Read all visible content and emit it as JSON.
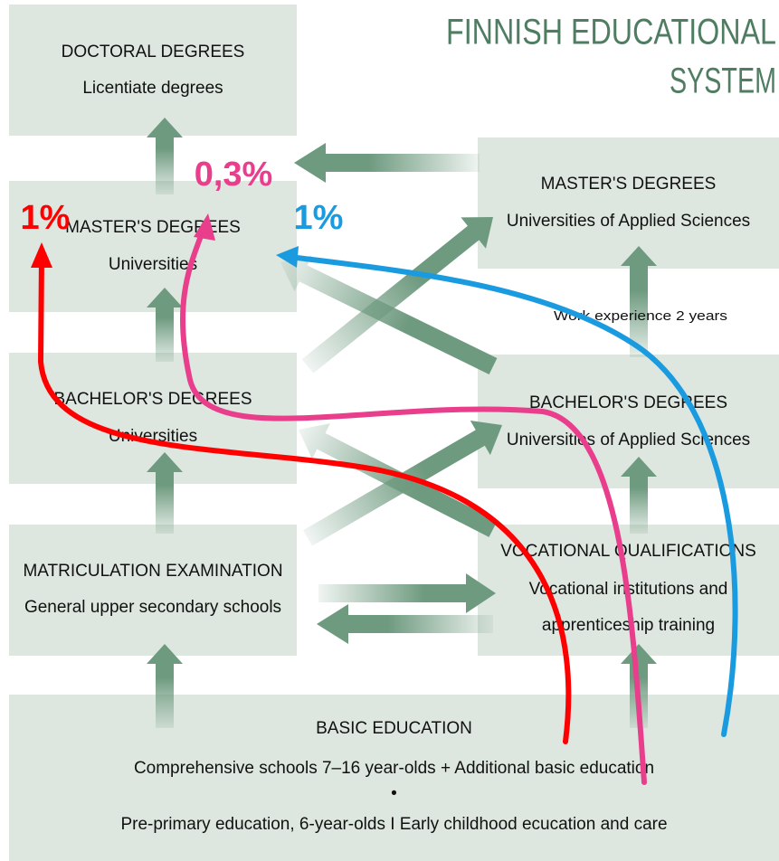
{
  "title": [
    "FINNISH EDUCATIONAL",
    "SYSTEM"
  ],
  "boxes": [
    {
      "lines": [
        "DOCTORAL DEGREES",
        "Licentiate degrees"
      ]
    },
    {
      "lines": [
        "MASTER'S DEGREES",
        "Universities"
      ]
    },
    {
      "lines": [
        "BACHELOR'S DEGREES",
        "Universities"
      ]
    },
    {
      "lines": [
        "MATRICULATION EXAMINATION",
        "General upper secondary schools"
      ]
    },
    {
      "lines": [
        "MASTER'S DEGREES",
        "Universities of Applied Sciences"
      ]
    },
    {
      "lines": [
        "BACHELOR'S DEGREES",
        "Universities of Applied Sciences"
      ]
    },
    {
      "lines": [
        "VOCATIONAL QUALIFICATIONS",
        "Vocational institutions and",
        "apprenticeship training"
      ]
    },
    {
      "lines": [
        "BASIC EDUCATION",
        "Comprehensive schools 7–16 year-olds + Additional basic education",
        "•",
        "Pre-primary education, 6-year-olds I Early childhood ecucation and care"
      ]
    }
  ],
  "note": "Work experience 2 years",
  "rates": [
    "1%",
    "0,3%",
    "1%"
  ]
}
